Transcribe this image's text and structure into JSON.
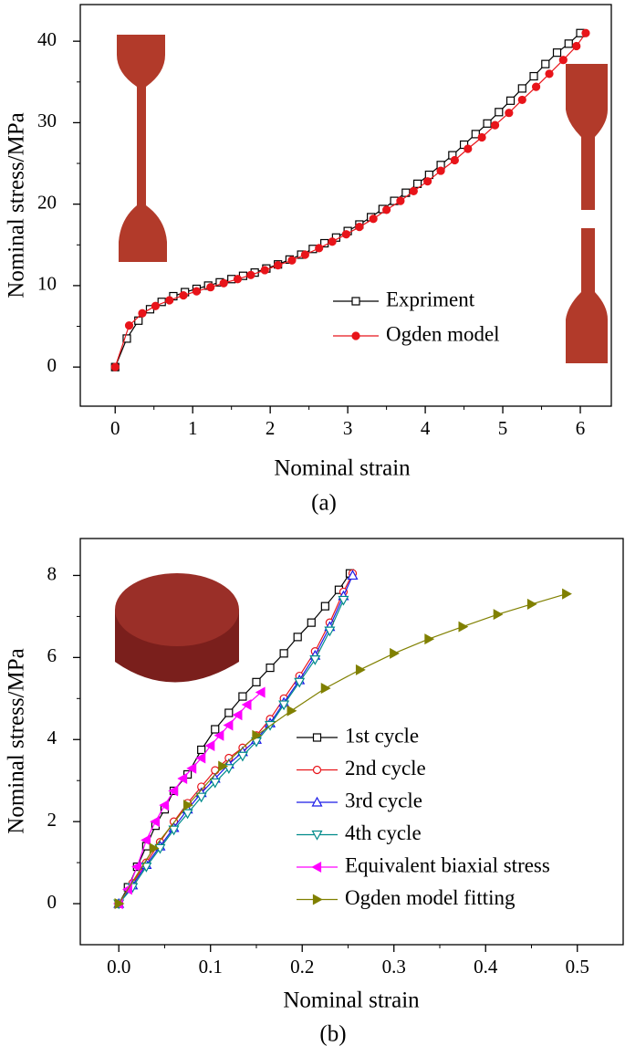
{
  "chart_data": [
    {
      "type": "line",
      "caption": "(a)",
      "x_label": "Nominal strain",
      "y_label": "Nominal stress/MPa",
      "xlim": [
        -0.45,
        6.4
      ],
      "ylim": [
        -4.8,
        44.5
      ],
      "xticks": [
        0,
        1,
        2,
        3,
        4,
        5,
        6
      ],
      "yticks": [
        0,
        10,
        20,
        30,
        40
      ],
      "series": [
        {
          "name": "Expriment",
          "color": "#000000",
          "marker": "square",
          "filled": false,
          "x": [
            0,
            0.15,
            0.3,
            0.45,
            0.6,
            0.75,
            0.9,
            1.05,
            1.2,
            1.35,
            1.5,
            1.65,
            1.8,
            1.95,
            2.1,
            2.25,
            2.4,
            2.55,
            2.7,
            2.85,
            3.0,
            3.15,
            3.3,
            3.45,
            3.6,
            3.75,
            3.9,
            4.05,
            4.2,
            4.35,
            4.5,
            4.65,
            4.8,
            4.95,
            5.1,
            5.25,
            5.4,
            5.55,
            5.7,
            5.85,
            6.0
          ],
          "values": [
            0,
            3.5,
            5.7,
            7.1,
            8.0,
            8.7,
            9.2,
            9.6,
            10.0,
            10.4,
            10.8,
            11.2,
            11.6,
            12.1,
            12.6,
            13.2,
            13.8,
            14.5,
            15.2,
            15.9,
            16.7,
            17.5,
            18.4,
            19.4,
            20.4,
            21.4,
            22.5,
            23.6,
            24.8,
            26.0,
            27.3,
            28.6,
            29.9,
            31.3,
            32.7,
            34.2,
            35.7,
            37.2,
            38.6,
            39.7,
            41.0
          ]
        },
        {
          "name": "Ogden model",
          "color": "#e8141a",
          "marker": "circle",
          "filled": true,
          "x": [
            0,
            0.18,
            0.35,
            0.52,
            0.7,
            0.88,
            1.05,
            1.23,
            1.4,
            1.58,
            1.75,
            1.93,
            2.1,
            2.28,
            2.45,
            2.63,
            2.8,
            2.98,
            3.15,
            3.33,
            3.5,
            3.68,
            3.85,
            4.03,
            4.2,
            4.38,
            4.55,
            4.73,
            4.9,
            5.08,
            5.25,
            5.43,
            5.6,
            5.78,
            5.95,
            6.07
          ],
          "values": [
            0,
            5.1,
            6.6,
            7.5,
            8.2,
            8.8,
            9.3,
            9.8,
            10.3,
            10.8,
            11.3,
            11.9,
            12.5,
            13.1,
            13.8,
            14.6,
            15.4,
            16.3,
            17.2,
            18.2,
            19.3,
            20.4,
            21.6,
            22.8,
            24.1,
            25.4,
            26.8,
            28.2,
            29.7,
            31.2,
            32.8,
            34.4,
            36.0,
            37.7,
            39.4,
            41.0
          ]
        }
      ]
    },
    {
      "type": "line",
      "caption": "(b)",
      "x_label": "Nominal strain",
      "y_label": "Nominal stress/MPa",
      "xlim": [
        -0.042,
        0.55
      ],
      "ylim": [
        -1,
        8.9
      ],
      "xticks": [
        {
          "value": 0,
          "label": "0.0"
        },
        0.1,
        0.2,
        0.3,
        0.4,
        0.5
      ],
      "yticks": [
        0,
        2,
        4,
        6,
        8
      ],
      "series": [
        {
          "name": "1st cycle",
          "color": "#000000",
          "marker": "square",
          "filled": false,
          "x": [
            0,
            0.01,
            0.02,
            0.03,
            0.04,
            0.05,
            0.06,
            0.075,
            0.09,
            0.105,
            0.12,
            0.135,
            0.15,
            0.165,
            0.18,
            0.195,
            0.21,
            0.225,
            0.24,
            0.252
          ],
          "values": [
            0,
            0.4,
            0.9,
            1.4,
            1.9,
            2.3,
            2.75,
            3.15,
            3.75,
            4.25,
            4.65,
            5.05,
            5.4,
            5.75,
            6.1,
            6.5,
            6.85,
            7.25,
            7.65,
            8.05
          ]
        },
        {
          "name": "2nd cycle",
          "color": "#e8141a",
          "marker": "circle",
          "filled": false,
          "x": [
            0,
            0.015,
            0.03,
            0.045,
            0.06,
            0.075,
            0.09,
            0.105,
            0.12,
            0.135,
            0.15,
            0.165,
            0.18,
            0.197,
            0.214,
            0.23,
            0.245,
            0.255
          ],
          "values": [
            0,
            0.5,
            1.0,
            1.5,
            2.0,
            2.45,
            2.85,
            3.25,
            3.55,
            3.8,
            4.1,
            4.5,
            5.0,
            5.55,
            6.15,
            6.85,
            7.6,
            8.05
          ]
        },
        {
          "name": "3rd cycle",
          "color": "#1a1ae8",
          "marker": "triangle-up",
          "filled": false,
          "x": [
            0,
            0.015,
            0.03,
            0.045,
            0.06,
            0.075,
            0.09,
            0.105,
            0.12,
            0.135,
            0.15,
            0.165,
            0.18,
            0.197,
            0.214,
            0.23,
            0.245,
            0.255
          ],
          "values": [
            0,
            0.45,
            0.95,
            1.4,
            1.85,
            2.3,
            2.7,
            3.05,
            3.4,
            3.7,
            4.0,
            4.4,
            4.9,
            5.45,
            6.05,
            6.75,
            7.5,
            8.0
          ]
        },
        {
          "name": "4th cycle",
          "color": "#008b8b",
          "marker": "triangle-down",
          "filled": false,
          "x": [
            0,
            0.015,
            0.03,
            0.045,
            0.06,
            0.075,
            0.09,
            0.105,
            0.12,
            0.135,
            0.15,
            0.165,
            0.18,
            0.197,
            0.214,
            0.23,
            0.245
          ],
          "values": [
            0,
            0.4,
            0.9,
            1.35,
            1.8,
            2.2,
            2.6,
            2.95,
            3.3,
            3.6,
            3.95,
            4.35,
            4.85,
            5.4,
            5.95,
            6.65,
            7.4
          ]
        },
        {
          "name": "Equivalent biaxial stress",
          "color": "#ff00ff",
          "marker": "triangle-left",
          "filled": true,
          "x": [
            0,
            0.01,
            0.02,
            0.03,
            0.04,
            0.05,
            0.06,
            0.07,
            0.08,
            0.09,
            0.1,
            0.11,
            0.12,
            0.13,
            0.14,
            0.155
          ],
          "values": [
            0,
            0.35,
            0.9,
            1.55,
            2.0,
            2.4,
            2.75,
            3.05,
            3.3,
            3.55,
            3.85,
            4.1,
            4.35,
            4.6,
            4.85,
            5.15
          ]
        },
        {
          "name": "Ogden model fitting",
          "color": "#808000",
          "marker": "triangle-right",
          "filled": true,
          "x": [
            0,
            0.038,
            0.075,
            0.113,
            0.15,
            0.188,
            0.225,
            0.263,
            0.3,
            0.338,
            0.375,
            0.413,
            0.45,
            0.488
          ],
          "values": [
            0,
            1.35,
            2.4,
            3.35,
            4.1,
            4.7,
            5.25,
            5.7,
            6.1,
            6.45,
            6.75,
            7.05,
            7.3,
            7.55
          ]
        }
      ]
    }
  ]
}
